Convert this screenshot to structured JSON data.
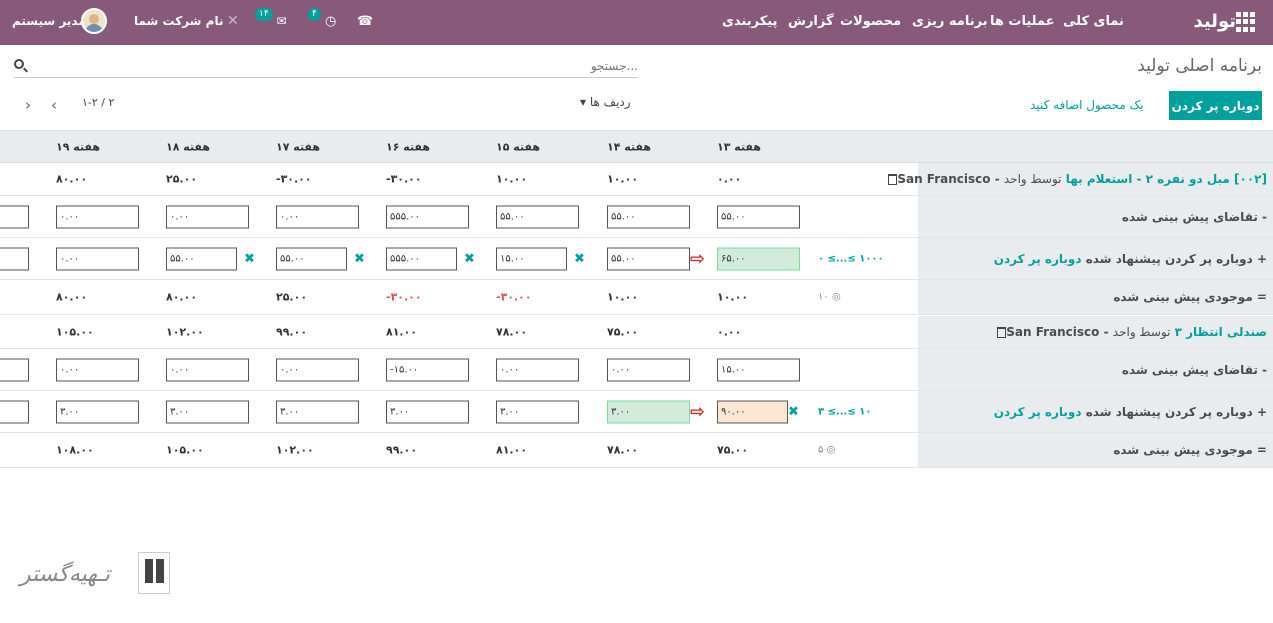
{
  "topbar": {
    "brand": "تولید",
    "menu": [
      "نمای کلی",
      "عملیات ها",
      "برنامه ریزی",
      "محصولات",
      "گزارش",
      "پیکربندی"
    ],
    "company": "نام شرکت شما",
    "user": "مدیر سیستم",
    "chat_count": "۱۴",
    "activity_count": "۴"
  },
  "page": {
    "title": "برنامه اصلی تولید",
    "search_placeholder": "جستجو...",
    "replenish_btn": "دوباره پر کردن",
    "add_product": "یک محصول اضافه کنید",
    "rows_btn": "ردیف ها",
    "pager": "۱-۲ / ۲"
  },
  "weeks": [
    "هفته ۱۳",
    "هفته ۱۴",
    "هفته ۱۵",
    "هفته ۱۶",
    "هفته ۱۷",
    "هفته ۱۸",
    "هفته ۱۹"
  ],
  "products": [
    {
      "name_code": "[۰۰۲] مبل دو نفره ۲ - استعلام بها",
      "by": "توسط واحد",
      "loc": "San Francisco",
      "totals": [
        "۰.۰۰",
        "۱۰.۰۰",
        "۱۰.۰۰",
        "-۳۰.۰۰",
        "-۳۰.۰۰",
        "۲۵.۰۰",
        "۸۰.۰۰"
      ],
      "demand_label": "- تقاضای پیش بینی شده",
      "demand": [
        "۵۵.۰۰",
        "۵۵.۰۰",
        "۵۵.۰۰",
        "۵۵۵.۰۰",
        "۰.۰۰",
        "۰.۰۰",
        "۰.۰۰"
      ],
      "repl_label": "+ دوباره پر کردن پیشنهاد شده",
      "repl_link": "دوباره پر کردن",
      "repl": [
        "۶۵.۰۰",
        "۵۵.۰۰",
        "۱۵.۰۰",
        "۵۵۵.۰۰",
        "۵۵.۰۰",
        "۵۵.۰۰",
        "۰.۰۰"
      ],
      "range": "۰ ≤...≤ ۱۰۰۰",
      "stock_label": "= موجودی پیش بینی شده",
      "stock": [
        "۱۰.۰۰",
        "۱۰.۰۰",
        "-۳۰.۰۰",
        "-۳۰.۰۰",
        "۲۵.۰۰",
        "۸۰.۰۰",
        "۸۰.۰۰"
      ],
      "safety": "۱۰"
    },
    {
      "name_code": "صندلی انتظار ۳",
      "by": "توسط واحد",
      "loc": "San Francisco",
      "totals": [
        "۰.۰۰",
        "۷۵.۰۰",
        "۷۸.۰۰",
        "۸۱.۰۰",
        "۹۹.۰۰",
        "۱۰۲.۰۰",
        "۱۰۵.۰۰"
      ],
      "demand_label": "- تقاضای پیش بینی شده",
      "demand": [
        "۱۵.۰۰",
        "۰.۰۰",
        "۰.۰۰",
        "-۱۵.۰۰",
        "۰.۰۰",
        "۰.۰۰",
        "۰.۰۰"
      ],
      "repl_label": "+ دوباره پر کردن پیشنهاد شده",
      "repl_link": "دوباره پر کردن",
      "repl": [
        "۹۰.۰۰",
        "۳.۰۰",
        "۳.۰۰",
        "۳.۰۰",
        "۳.۰۰",
        "۳.۰۰",
        "۳.۰۰"
      ],
      "range": "۳ ≤...≤ ۱۰",
      "stock_label": "= موجودی پیش بینی شده",
      "stock": [
        "۷۵.۰۰",
        "۷۸.۰۰",
        "۸۱.۰۰",
        "۹۹.۰۰",
        "۱۰۲.۰۰",
        "۱۰۵.۰۰",
        "۱۰۸.۰۰"
      ],
      "safety": "۵"
    }
  ]
}
